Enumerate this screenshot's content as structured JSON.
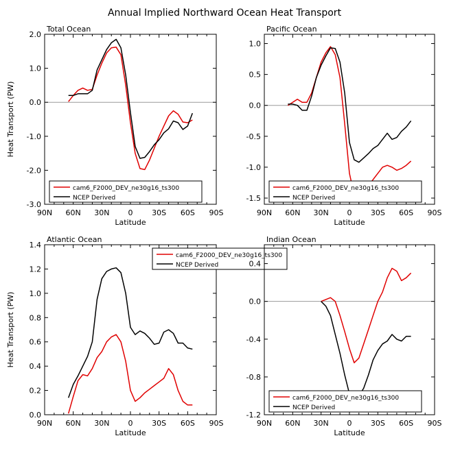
{
  "title": "Annual Implied Northward Ocean Heat Transport",
  "colors": {
    "model": "#e00000",
    "obs": "#000000",
    "zero_line": "#999999"
  },
  "legend_labels": [
    "cam6_F2000_DEV_ne30g16_ts300",
    "NCEP Derived"
  ],
  "x_tick_labels": [
    "90N",
    "60N",
    "30N",
    "0",
    "30S",
    "60S",
    "90S"
  ],
  "chart_data": [
    {
      "type": "line",
      "panel_title": "Total Ocean",
      "xlabel": "Latitude",
      "ylabel": "Heat Transport (PW)",
      "xlim": [
        90,
        -90
      ],
      "ylim": [
        -3.0,
        2.0
      ],
      "y_ticks": [
        "2.0",
        "1.0",
        "0.0",
        "-1.0",
        "-2.0",
        "-3.0"
      ],
      "y_tick_values": [
        2,
        1,
        0,
        -1,
        -2,
        -3
      ],
      "zero_line": true,
      "legend_position": "bottom-left",
      "series": [
        {
          "name": "cam6_F2000_DEV_ne30g16_ts300",
          "x": [
            65,
            60,
            55,
            50,
            45,
            40,
            35,
            30,
            25,
            20,
            15,
            10,
            5,
            0,
            -5,
            -10,
            -15,
            -20,
            -25,
            -30,
            -35,
            -40,
            -45,
            -50,
            -55,
            -60,
            -65
          ],
          "y": [
            0.02,
            0.2,
            0.35,
            0.42,
            0.35,
            0.38,
            0.8,
            1.15,
            1.45,
            1.6,
            1.62,
            1.4,
            0.5,
            -0.6,
            -1.5,
            -1.95,
            -1.98,
            -1.7,
            -1.35,
            -1.0,
            -0.7,
            -0.4,
            -0.25,
            -0.35,
            -0.58,
            -0.6,
            -0.52
          ]
        },
        {
          "name": "NCEP Derived",
          "x": [
            65,
            60,
            55,
            50,
            45,
            40,
            35,
            30,
            25,
            20,
            15,
            10,
            5,
            0,
            -5,
            -10,
            -15,
            -20,
            -25,
            -30,
            -35,
            -40,
            -45,
            -50,
            -55,
            -60,
            -65
          ],
          "y": [
            0.2,
            0.2,
            0.25,
            0.25,
            0.25,
            0.35,
            0.95,
            1.25,
            1.55,
            1.75,
            1.85,
            1.6,
            0.8,
            -0.3,
            -1.3,
            -1.65,
            -1.62,
            -1.45,
            -1.25,
            -1.1,
            -0.9,
            -0.78,
            -0.55,
            -0.6,
            -0.8,
            -0.7,
            -0.32
          ]
        }
      ]
    },
    {
      "type": "line",
      "panel_title": "Pacific Ocean",
      "xlabel": "Latitude",
      "ylabel": "",
      "xlim": [
        90,
        -90
      ],
      "ylim": [
        -1.6,
        1.15
      ],
      "y_ticks": [
        "1.0",
        "0.5",
        "0.0",
        "-0.5",
        "-1.0",
        "-1.5"
      ],
      "y_tick_values": [
        1,
        0.5,
        0,
        -0.5,
        -1,
        -1.5
      ],
      "zero_line": true,
      "legend_position": "bottom-left",
      "series": [
        {
          "name": "cam6_F2000_DEV_ne30g16_ts300",
          "x": [
            65,
            60,
            55,
            50,
            45,
            40,
            35,
            30,
            25,
            20,
            15,
            10,
            5,
            0,
            -5,
            -10,
            -15,
            -20,
            -25,
            -30,
            -35,
            -40,
            -45,
            -50,
            -55,
            -60,
            -65
          ],
          "y": [
            0.0,
            0.05,
            0.1,
            0.05,
            0.05,
            0.2,
            0.45,
            0.7,
            0.85,
            0.95,
            0.82,
            0.45,
            -0.3,
            -1.1,
            -1.45,
            -1.52,
            -1.45,
            -1.3,
            -1.2,
            -1.1,
            -1.0,
            -0.97,
            -1.0,
            -1.05,
            -1.02,
            -0.97,
            -0.9
          ]
        },
        {
          "name": "NCEP Derived",
          "x": [
            65,
            60,
            55,
            50,
            45,
            40,
            35,
            30,
            25,
            20,
            15,
            10,
            5,
            0,
            -5,
            -10,
            -15,
            -20,
            -25,
            -30,
            -35,
            -40,
            -45,
            -50,
            -55,
            -60,
            -65
          ],
          "y": [
            0.02,
            0.02,
            0.0,
            -0.08,
            -0.08,
            0.15,
            0.45,
            0.65,
            0.8,
            0.93,
            0.92,
            0.7,
            0.2,
            -0.6,
            -0.88,
            -0.92,
            -0.85,
            -0.78,
            -0.7,
            -0.65,
            -0.55,
            -0.45,
            -0.55,
            -0.52,
            -0.42,
            -0.35,
            -0.25
          ]
        }
      ]
    },
    {
      "type": "line",
      "panel_title": "Atlantic Ocean",
      "xlabel": "Latitude",
      "ylabel": "Heat Transport (PW)",
      "xlim": [
        90,
        -90
      ],
      "ylim": [
        0.0,
        1.4
      ],
      "y_ticks": [
        "1.4",
        "1.2",
        "1.0",
        "0.8",
        "0.6",
        "0.4",
        "0.2",
        "0.0"
      ],
      "y_tick_values": [
        1.4,
        1.2,
        1.0,
        0.8,
        0.6,
        0.4,
        0.2,
        0.0
      ],
      "zero_line": false,
      "legend_position": "top-center",
      "series": [
        {
          "name": "cam6_F2000_DEV_ne30g16_ts300",
          "x": [
            65,
            60,
            55,
            50,
            45,
            40,
            35,
            30,
            25,
            20,
            15,
            10,
            5,
            0,
            -5,
            -10,
            -15,
            -20,
            -25,
            -30,
            -35,
            -40,
            -45,
            -50,
            -55,
            -60,
            -65
          ],
          "y": [
            0.01,
            0.15,
            0.28,
            0.33,
            0.32,
            0.38,
            0.47,
            0.52,
            0.6,
            0.64,
            0.66,
            0.6,
            0.44,
            0.2,
            0.11,
            0.14,
            0.18,
            0.21,
            0.24,
            0.27,
            0.3,
            0.38,
            0.33,
            0.2,
            0.11,
            0.08,
            0.08
          ]
        },
        {
          "name": "NCEP Derived",
          "x": [
            65,
            60,
            55,
            50,
            45,
            40,
            35,
            30,
            25,
            20,
            15,
            10,
            5,
            0,
            -5,
            -10,
            -15,
            -20,
            -25,
            -30,
            -35,
            -40,
            -45,
            -50,
            -55,
            -60,
            -65
          ],
          "y": [
            0.14,
            0.25,
            0.32,
            0.4,
            0.48,
            0.6,
            0.95,
            1.12,
            1.18,
            1.2,
            1.21,
            1.17,
            1.0,
            0.72,
            0.66,
            0.69,
            0.67,
            0.63,
            0.58,
            0.59,
            0.68,
            0.7,
            0.67,
            0.59,
            0.59,
            0.55,
            0.54
          ]
        }
      ]
    },
    {
      "type": "line",
      "panel_title": "Indian Ocean",
      "xlabel": "Latitude",
      "ylabel": "",
      "xlim": [
        90,
        -90
      ],
      "ylim": [
        -1.2,
        0.6
      ],
      "y_ticks": [
        "0.4",
        "0.0",
        "-0.4",
        "-0.8",
        "-1.2"
      ],
      "y_tick_values": [
        0.4,
        0.0,
        -0.4,
        -0.8,
        -1.2
      ],
      "zero_line": true,
      "legend_position": "bottom-left",
      "series": [
        {
          "name": "cam6_F2000_DEV_ne30g16_ts300",
          "x": [
            30,
            25,
            20,
            15,
            10,
            5,
            0,
            -5,
            -10,
            -15,
            -20,
            -25,
            -30,
            -35,
            -40,
            -45,
            -50,
            -55,
            -60,
            -65
          ],
          "y": [
            0.0,
            0.02,
            0.04,
            0.0,
            -0.15,
            -0.32,
            -0.5,
            -0.65,
            -0.6,
            -0.45,
            -0.3,
            -0.15,
            0.0,
            0.1,
            0.25,
            0.35,
            0.32,
            0.22,
            0.25,
            0.3
          ]
        },
        {
          "name": "NCEP Derived",
          "x": [
            30,
            25,
            20,
            15,
            10,
            5,
            0,
            -5,
            -10,
            -15,
            -20,
            -25,
            -30,
            -35,
            -40,
            -45,
            -50,
            -55,
            -60,
            -65
          ],
          "y": [
            0.0,
            -0.05,
            -0.15,
            -0.35,
            -0.55,
            -0.78,
            -0.98,
            -1.05,
            -1.0,
            -0.92,
            -0.78,
            -0.62,
            -0.52,
            -0.45,
            -0.42,
            -0.35,
            -0.4,
            -0.42,
            -0.37,
            -0.37
          ]
        }
      ]
    }
  ]
}
